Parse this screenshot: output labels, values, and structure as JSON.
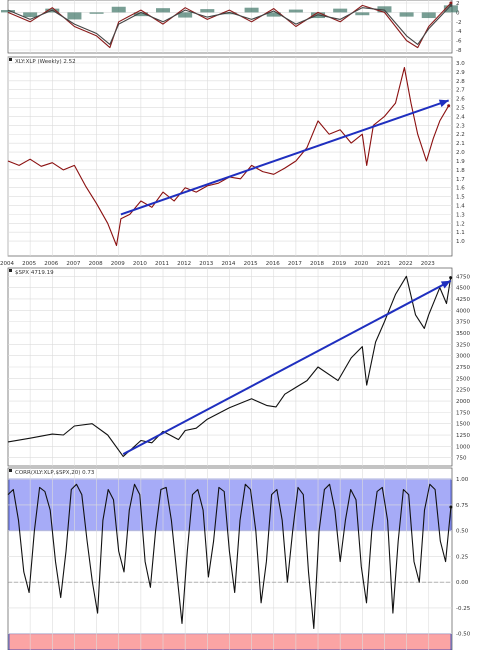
{
  "chart_data": [
    {
      "type": "line",
      "panel": "oscillator-strip",
      "ylim": [
        -8,
        2
      ],
      "y_ticks": [
        "2",
        "0",
        "-2",
        "-4",
        "-6",
        "-8"
      ],
      "series": [
        {
          "color": "#2f6a5a",
          "fill": "histogram",
          "x": [
            2004,
            2005,
            2006,
            2007,
            2008,
            2009,
            2010,
            2011,
            2012,
            2013,
            2014,
            2015,
            2016,
            2017,
            2018,
            2019,
            2020,
            2021,
            2022,
            2023,
            2024
          ],
          "values": [
            0.5,
            -1,
            0.8,
            -1.5,
            -0.3,
            1.2,
            -0.8,
            0.9,
            -1.1,
            0.7,
            -0.4,
            1,
            -0.9,
            0.6,
            -1.2,
            0.8,
            -0.6,
            1.3,
            -0.9,
            -1.2,
            1.5
          ]
        },
        {
          "color": "#8b1b1b",
          "x": [
            2004,
            2005,
            2006,
            2007,
            2008,
            2008.6,
            2009,
            2010,
            2011,
            2012,
            2013,
            2014,
            2015,
            2016,
            2017,
            2018,
            2019,
            2020,
            2021,
            2022,
            2022.5,
            2023,
            2024
          ],
          "values": [
            0,
            -2,
            1,
            -3,
            -5,
            -7.5,
            -2,
            0.5,
            -2.5,
            1,
            -1.5,
            0.5,
            -2,
            0.8,
            -3,
            0,
            -2,
            1.5,
            0,
            -6,
            -7.5,
            -3,
            2
          ]
        },
        {
          "color": "#444444",
          "x": [
            2004,
            2005,
            2006,
            2007,
            2008,
            2008.6,
            2009,
            2010,
            2011,
            2012,
            2013,
            2014,
            2015,
            2016,
            2017,
            2018,
            2019,
            2020,
            2021,
            2022,
            2022.5,
            2023,
            2024
          ],
          "values": [
            0.5,
            -1.5,
            0.5,
            -2.5,
            -4.5,
            -6.8,
            -2.5,
            0,
            -2,
            0.5,
            -1,
            0,
            -1.5,
            0.3,
            -2.5,
            -0.5,
            -1.5,
            1,
            0.5,
            -5,
            -6.8,
            -3.5,
            1.5
          ]
        }
      ]
    },
    {
      "type": "line",
      "title": "XLY:XLP (Weekly) 2.52",
      "ylim": [
        0.9,
        3.0
      ],
      "y_ticks": [
        "3.0",
        "2.9",
        "2.8",
        "2.7",
        "2.6",
        "2.5",
        "2.4",
        "2.3",
        "2.2",
        "2.1",
        "2.0",
        "1.9",
        "1.8",
        "1.7",
        "1.6",
        "1.5",
        "1.4",
        "1.3",
        "1.2",
        "1.1",
        "1.0"
      ],
      "x_ticks": [
        "2004",
        "2005",
        "2006",
        "2007",
        "2008",
        "2009",
        "2010",
        "2011",
        "2012",
        "2013",
        "2014",
        "2015",
        "2016",
        "2017",
        "2018",
        "2019",
        "2020",
        "2021",
        "2022",
        "2023"
      ],
      "series": [
        {
          "color": "#8b1010",
          "x": [
            2004,
            2004.5,
            2005,
            2005.5,
            2006,
            2006.5,
            2007,
            2007.5,
            2008,
            2008.5,
            2008.9,
            2009.1,
            2009.5,
            2010,
            2010.5,
            2011,
            2011.5,
            2012,
            2012.5,
            2013,
            2013.5,
            2014,
            2014.5,
            2015,
            2015.5,
            2016,
            2016.5,
            2017,
            2017.5,
            2018,
            2018.5,
            2019,
            2019.5,
            2020,
            2020.2,
            2020.5,
            2021,
            2021.5,
            2021.9,
            2022.2,
            2022.5,
            2022.9,
            2023.2,
            2023.5,
            2023.9
          ],
          "values": [
            1.9,
            1.85,
            1.92,
            1.84,
            1.88,
            1.8,
            1.85,
            1.62,
            1.42,
            1.2,
            0.95,
            1.25,
            1.3,
            1.45,
            1.38,
            1.55,
            1.45,
            1.6,
            1.55,
            1.62,
            1.65,
            1.72,
            1.7,
            1.85,
            1.78,
            1.75,
            1.82,
            1.9,
            2.05,
            2.35,
            2.2,
            2.25,
            2.1,
            2.2,
            1.85,
            2.3,
            2.4,
            2.55,
            2.95,
            2.55,
            2.2,
            1.9,
            2.15,
            2.35,
            2.52
          ]
        },
        {
          "color": "#1f2fbf",
          "style": "trendline",
          "x": [
            2009.1,
            2023.9
          ],
          "values": [
            1.3,
            2.58
          ]
        }
      ]
    },
    {
      "type": "line",
      "title": "$SPX 4719.19",
      "ylim": [
        700,
        4800
      ],
      "y_ticks": [
        "4750",
        "4500",
        "4250",
        "4000",
        "3750",
        "3500",
        "3250",
        "3000",
        "2750",
        "2500",
        "2250",
        "2000",
        "1750",
        "1500",
        "1250",
        "1000",
        "750"
      ],
      "series": [
        {
          "color": "#111111",
          "x": [
            2004,
            2005,
            2006,
            2006.5,
            2007,
            2007.8,
            2008.5,
            2009.2,
            2009.6,
            2010,
            2010.5,
            2011,
            2011.7,
            2012,
            2012.5,
            2013,
            2014,
            2015,
            2015.7,
            2016.1,
            2016.5,
            2017,
            2017.5,
            2018,
            2018.9,
            2019.5,
            2020,
            2020.2,
            2020.6,
            2021,
            2021.5,
            2021.99,
            2022.4,
            2022.8,
            2023,
            2023.5,
            2023.8,
            2023.99
          ],
          "values": [
            1100,
            1180,
            1270,
            1250,
            1450,
            1500,
            1250,
            780,
            950,
            1130,
            1080,
            1330,
            1150,
            1350,
            1400,
            1600,
            1850,
            2050,
            1900,
            1870,
            2150,
            2300,
            2450,
            2750,
            2450,
            2950,
            3200,
            2350,
            3300,
            3750,
            4350,
            4750,
            3900,
            3600,
            3900,
            4500,
            4150,
            4719
          ]
        },
        {
          "color": "#1f2fbf",
          "style": "trendline",
          "x": [
            2009.2,
            2023.99
          ],
          "values": [
            830,
            4650
          ]
        }
      ]
    },
    {
      "type": "line",
      "title": "CORR(XLY:XLP,$SPX,20) 0.73",
      "ylim": [
        -0.6,
        1.05
      ],
      "y_ticks": [
        "1.00",
        "0.75",
        "0.50",
        "0.25",
        "0.00",
        "-0.25",
        "-0.50"
      ],
      "bands": [
        {
          "from": 0.5,
          "to": 1.0,
          "color": "#9da3f7"
        },
        {
          "from": -1.0,
          "to": -0.5,
          "color": "#fb9b9b"
        }
      ],
      "reference_line": 0.0,
      "series": [
        {
          "color": "#111111",
          "values": [
            0.85,
            0.9,
            0.6,
            0.1,
            -0.1,
            0.5,
            0.92,
            0.88,
            0.7,
            0.2,
            -0.15,
            0.3,
            0.9,
            0.95,
            0.85,
            0.4,
            0.0,
            -0.3,
            0.6,
            0.9,
            0.8,
            0.3,
            0.1,
            0.7,
            0.95,
            0.85,
            0.2,
            -0.05,
            0.5,
            0.9,
            0.92,
            0.6,
            0.1,
            -0.4,
            0.3,
            0.85,
            0.9,
            0.7,
            0.05,
            0.4,
            0.92,
            0.88,
            0.3,
            -0.1,
            0.6,
            0.95,
            0.9,
            0.5,
            -0.2,
            0.2,
            0.85,
            0.9,
            0.6,
            0.0,
            0.5,
            0.92,
            0.85,
            0.1,
            -0.45,
            0.5,
            0.9,
            0.95,
            0.7,
            0.2,
            0.6,
            0.9,
            0.8,
            0.15,
            -0.2,
            0.5,
            0.88,
            0.92,
            0.6,
            -0.3,
            0.4,
            0.9,
            0.85,
            0.2,
            0.0,
            0.7,
            0.95,
            0.9,
            0.4,
            0.2,
            0.73
          ]
        }
      ]
    }
  ]
}
